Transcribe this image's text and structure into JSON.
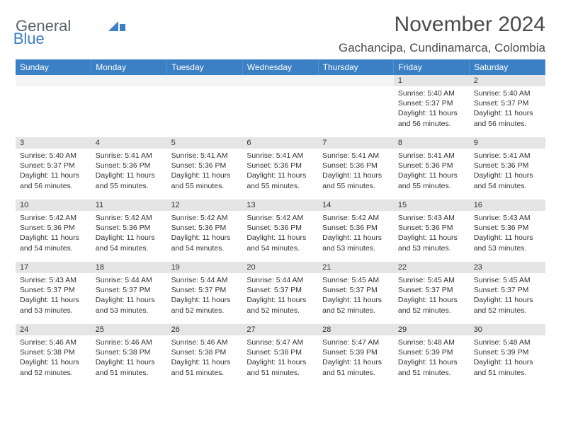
{
  "logo": {
    "line1": "General",
    "line2": "Blue"
  },
  "title": "November 2024",
  "location": "Gachancipa, Cundinamarca, Colombia",
  "colors": {
    "header_bg": "#3b7fc4",
    "header_text": "#ffffff",
    "daynum_bg": "#e5e5e5",
    "body_text": "#333333",
    "page_bg": "#ffffff",
    "logo_gray": "#5a6268",
    "logo_blue": "#3b7fc4"
  },
  "weekdays": [
    "Sunday",
    "Monday",
    "Tuesday",
    "Wednesday",
    "Thursday",
    "Friday",
    "Saturday"
  ],
  "weeks": [
    {
      "nums": [
        "",
        "",
        "",
        "",
        "",
        "1",
        "2"
      ],
      "cells": [
        "",
        "",
        "",
        "",
        "",
        "Sunrise: 5:40 AM\nSunset: 5:37 PM\nDaylight: 11 hours and 56 minutes.",
        "Sunrise: 5:40 AM\nSunset: 5:37 PM\nDaylight: 11 hours and 56 minutes."
      ]
    },
    {
      "nums": [
        "3",
        "4",
        "5",
        "6",
        "7",
        "8",
        "9"
      ],
      "cells": [
        "Sunrise: 5:40 AM\nSunset: 5:37 PM\nDaylight: 11 hours and 56 minutes.",
        "Sunrise: 5:41 AM\nSunset: 5:36 PM\nDaylight: 11 hours and 55 minutes.",
        "Sunrise: 5:41 AM\nSunset: 5:36 PM\nDaylight: 11 hours and 55 minutes.",
        "Sunrise: 5:41 AM\nSunset: 5:36 PM\nDaylight: 11 hours and 55 minutes.",
        "Sunrise: 5:41 AM\nSunset: 5:36 PM\nDaylight: 11 hours and 55 minutes.",
        "Sunrise: 5:41 AM\nSunset: 5:36 PM\nDaylight: 11 hours and 55 minutes.",
        "Sunrise: 5:41 AM\nSunset: 5:36 PM\nDaylight: 11 hours and 54 minutes."
      ]
    },
    {
      "nums": [
        "10",
        "11",
        "12",
        "13",
        "14",
        "15",
        "16"
      ],
      "cells": [
        "Sunrise: 5:42 AM\nSunset: 5:36 PM\nDaylight: 11 hours and 54 minutes.",
        "Sunrise: 5:42 AM\nSunset: 5:36 PM\nDaylight: 11 hours and 54 minutes.",
        "Sunrise: 5:42 AM\nSunset: 5:36 PM\nDaylight: 11 hours and 54 minutes.",
        "Sunrise: 5:42 AM\nSunset: 5:36 PM\nDaylight: 11 hours and 54 minutes.",
        "Sunrise: 5:42 AM\nSunset: 5:36 PM\nDaylight: 11 hours and 53 minutes.",
        "Sunrise: 5:43 AM\nSunset: 5:36 PM\nDaylight: 11 hours and 53 minutes.",
        "Sunrise: 5:43 AM\nSunset: 5:36 PM\nDaylight: 11 hours and 53 minutes."
      ]
    },
    {
      "nums": [
        "17",
        "18",
        "19",
        "20",
        "21",
        "22",
        "23"
      ],
      "cells": [
        "Sunrise: 5:43 AM\nSunset: 5:37 PM\nDaylight: 11 hours and 53 minutes.",
        "Sunrise: 5:44 AM\nSunset: 5:37 PM\nDaylight: 11 hours and 53 minutes.",
        "Sunrise: 5:44 AM\nSunset: 5:37 PM\nDaylight: 11 hours and 52 minutes.",
        "Sunrise: 5:44 AM\nSunset: 5:37 PM\nDaylight: 11 hours and 52 minutes.",
        "Sunrise: 5:45 AM\nSunset: 5:37 PM\nDaylight: 11 hours and 52 minutes.",
        "Sunrise: 5:45 AM\nSunset: 5:37 PM\nDaylight: 11 hours and 52 minutes.",
        "Sunrise: 5:45 AM\nSunset: 5:37 PM\nDaylight: 11 hours and 52 minutes."
      ]
    },
    {
      "nums": [
        "24",
        "25",
        "26",
        "27",
        "28",
        "29",
        "30"
      ],
      "cells": [
        "Sunrise: 5:46 AM\nSunset: 5:38 PM\nDaylight: 11 hours and 52 minutes.",
        "Sunrise: 5:46 AM\nSunset: 5:38 PM\nDaylight: 11 hours and 51 minutes.",
        "Sunrise: 5:46 AM\nSunset: 5:38 PM\nDaylight: 11 hours and 51 minutes.",
        "Sunrise: 5:47 AM\nSunset: 5:38 PM\nDaylight: 11 hours and 51 minutes.",
        "Sunrise: 5:47 AM\nSunset: 5:39 PM\nDaylight: 11 hours and 51 minutes.",
        "Sunrise: 5:48 AM\nSunset: 5:39 PM\nDaylight: 11 hours and 51 minutes.",
        "Sunrise: 5:48 AM\nSunset: 5:39 PM\nDaylight: 11 hours and 51 minutes."
      ]
    }
  ]
}
